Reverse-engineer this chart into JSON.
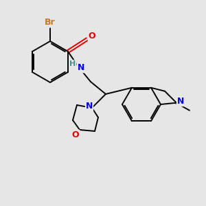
{
  "background_color": "#e6e6e6",
  "bond_color": "#000000",
  "lw": 1.4,
  "atom_colors": {
    "Br": "#c87820",
    "O": "#e00000",
    "N": "#0000e0",
    "H": "#4a9090"
  },
  "figsize": [
    3.0,
    3.0
  ],
  "dpi": 100
}
